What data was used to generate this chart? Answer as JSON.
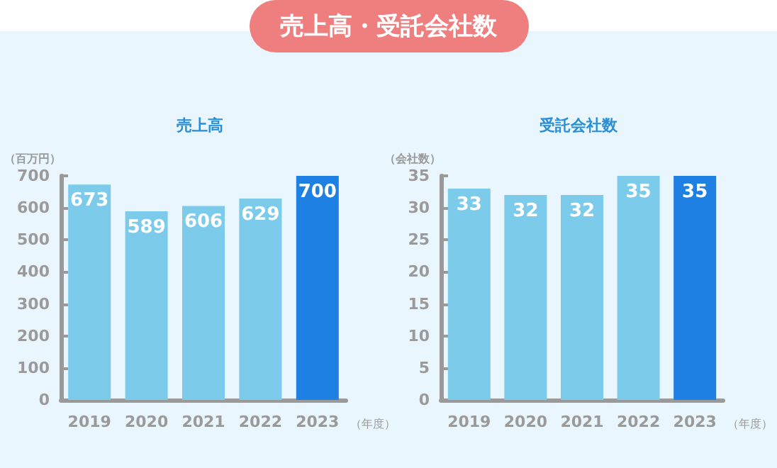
{
  "chart_data": [
    {
      "type": "bar",
      "title": "売上高",
      "annotations": [
        "売上高・受託会社数"
      ],
      "ylabel": "（百万円）",
      "xlabel": "（年度）",
      "categories": [
        "2019",
        "2020",
        "2021",
        "2022",
        "2023"
      ],
      "values": [
        673,
        589,
        606,
        629,
        700
      ],
      "colors": [
        "#7ccbeb",
        "#7ccbeb",
        "#7ccbeb",
        "#7ccbeb",
        "#1e80e2"
      ],
      "ylim": [
        0,
        700
      ],
      "yticks": [
        0,
        100,
        200,
        300,
        400,
        500,
        600,
        700
      ],
      "data_labels": true
    },
    {
      "type": "bar",
      "title": "受託会社数",
      "ylabel": "（会社数）",
      "xlabel": "（年度）",
      "categories": [
        "2019",
        "2020",
        "2021",
        "2022",
        "2023"
      ],
      "values": [
        33,
        32,
        32,
        35,
        35
      ],
      "colors": [
        "#7ccbeb",
        "#7ccbeb",
        "#7ccbeb",
        "#7ccbeb",
        "#1e80e2"
      ],
      "ylim": [
        0,
        35
      ],
      "yticks": [
        0,
        5,
        10,
        15,
        20,
        25,
        30,
        35
      ],
      "data_labels": true
    }
  ]
}
